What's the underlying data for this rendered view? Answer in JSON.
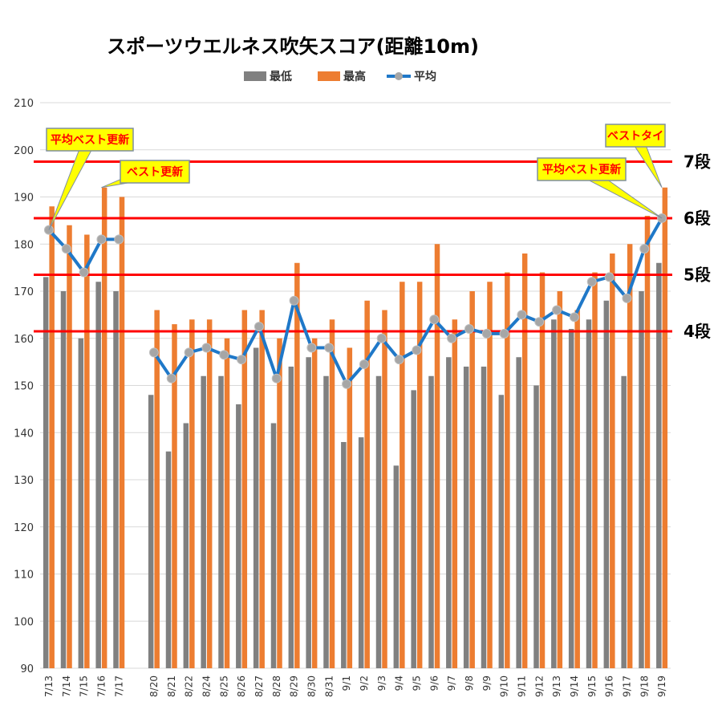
{
  "chart_data": {
    "type": "bar",
    "title": "スポーツウエルネス吹矢スコア(距離10m)",
    "ylim": [
      90,
      210
    ],
    "yticks": [
      90,
      100,
      110,
      120,
      130,
      140,
      150,
      160,
      170,
      180,
      190,
      200,
      210
    ],
    "grid": true,
    "legend_position": "top",
    "categories": [
      "7/13",
      "7/14",
      "7/15",
      "7/16",
      "7/17",
      "",
      "8/20",
      "8/21",
      "8/22",
      "8/24",
      "8/25",
      "8/26",
      "8/27",
      "8/28",
      "8/29",
      "8/30",
      "8/31",
      "9/1",
      "9/2",
      "9/3",
      "9/4",
      "9/5",
      "9/6",
      "9/7",
      "9/8",
      "9/9",
      "9/10",
      "9/11",
      "9/12",
      "9/13",
      "9/14",
      "9/15",
      "9/16",
      "9/17",
      "9/18",
      "9/19"
    ],
    "series": [
      {
        "name": "最低",
        "type": "bar",
        "color": "#808080",
        "values": [
          173,
          170,
          160,
          172,
          170,
          null,
          148,
          136,
          142,
          152,
          152,
          146,
          158,
          142,
          154,
          156,
          152,
          138,
          139,
          152,
          133,
          149,
          152,
          156,
          154,
          154,
          148,
          156,
          150,
          164,
          162,
          164,
          168,
          152,
          170,
          176
        ]
      },
      {
        "name": "最高",
        "type": "bar",
        "color": "#ed7d31",
        "values": [
          188,
          184,
          182,
          192,
          190,
          null,
          166,
          163,
          164,
          164,
          160,
          166,
          166,
          160,
          176,
          160,
          164,
          158,
          168,
          166,
          172,
          172,
          180,
          164,
          170,
          172,
          174,
          178,
          174,
          170,
          166,
          174,
          178,
          180,
          186,
          192
        ]
      },
      {
        "name": "平均",
        "type": "line",
        "color": "#1f78c8",
        "marker_color": "#a6a6a6",
        "values": [
          183,
          179,
          174,
          181,
          181,
          null,
          157,
          151.5,
          157,
          158,
          156.5,
          155.5,
          162.5,
          151.5,
          168,
          158,
          158,
          150.3,
          154.5,
          160,
          155.5,
          157.5,
          164,
          160,
          162,
          161,
          161,
          165,
          163.5,
          166,
          164.5,
          172,
          173,
          168.5,
          179,
          185.5
        ]
      }
    ],
    "reference_lines": [
      {
        "value": 161.5,
        "label": "4段",
        "color": "#ff0000"
      },
      {
        "value": 173.5,
        "label": "5段",
        "color": "#ff0000"
      },
      {
        "value": 185.5,
        "label": "6段",
        "color": "#ff0000"
      },
      {
        "value": 197.5,
        "label": "7段",
        "color": "#ff0000"
      }
    ],
    "annotations": [
      {
        "text": "平均ベスト更新",
        "target_category": "7/13",
        "target_value": 183
      },
      {
        "text": "ベスト更新",
        "target_category": "7/16",
        "target_value": 192
      },
      {
        "text": "ベストタイ",
        "target_category": "9/19",
        "target_value": 192
      },
      {
        "text": "平均ベスト更新",
        "target_category": "9/19",
        "target_value": 185.5
      }
    ]
  }
}
